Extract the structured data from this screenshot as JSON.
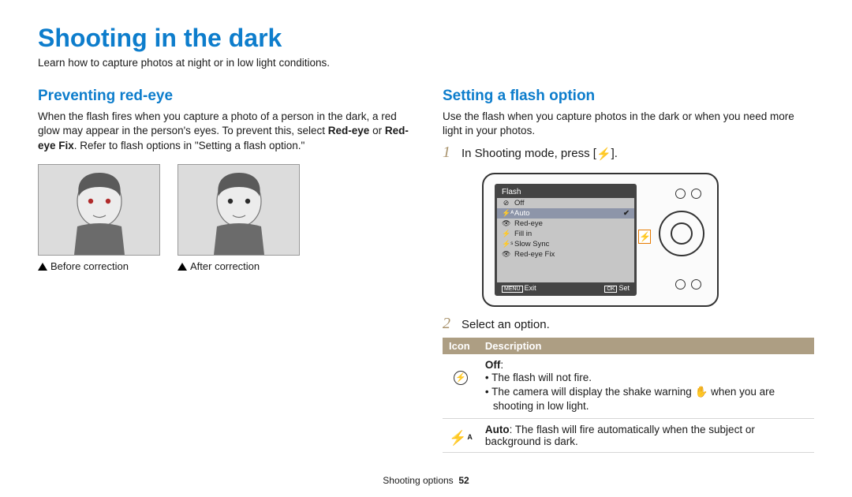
{
  "title": "Shooting in the dark",
  "subtitle": "Learn how to capture photos at night or in low light conditions.",
  "left": {
    "heading": "Preventing red-eye",
    "body_pre": "When the flash fires when you capture a photo of a person in the dark, a red glow may appear in the person's eyes. To prevent this, select ",
    "bold1": "Red-eye",
    "mid": " or ",
    "bold2": "Red-eye Fix",
    "body_post": ". Refer to flash options in \"Setting a flash option.\"",
    "caption_before": "Before correction",
    "caption_after": "After correction",
    "eye_color_before": "#b02a2a",
    "eye_color_after": "#2b2b2b"
  },
  "right": {
    "heading": "Setting a flash option",
    "body": "Use the flash when you capture photos in the dark or when you need more light in your photos.",
    "step1_pre": "In Shooting mode, press [",
    "step1_post": "].",
    "step2": "Select an option.",
    "flash_glyph": "⚡",
    "camera": {
      "title": "Flash",
      "items": [
        {
          "icon": "⊘",
          "label": "Off",
          "selected": false
        },
        {
          "icon": "⚡ᴬ",
          "label": "Auto",
          "selected": true
        },
        {
          "icon": "👁",
          "label": "Red-eye",
          "selected": false
        },
        {
          "icon": "⚡",
          "label": "Fill in",
          "selected": false
        },
        {
          "icon": "⚡ˢ",
          "label": "Slow Sync",
          "selected": false
        },
        {
          "icon": "👁",
          "label": "Red-eye Fix",
          "selected": false
        }
      ],
      "footer_left": "Exit",
      "footer_left_btn": "MENU",
      "footer_right": "Set",
      "footer_right_btn": "OK",
      "bolt_side": "⚡"
    },
    "table": {
      "col_icon": "Icon",
      "col_desc": "Description",
      "rows": [
        {
          "icon_kind": "circle-slash",
          "title": "Off",
          "title_post": ":",
          "lines": [
            "The flash will not fire.",
            "The camera will display the shake warning ✋ when you are shooting in low light."
          ]
        },
        {
          "icon_kind": "bolt-a",
          "title": "Auto",
          "body": ": The flash will fire automatically when the subject or background is dark."
        }
      ]
    }
  },
  "footer": {
    "section": "Shooting options",
    "page": "52"
  },
  "colors": {
    "heading": "#0d7dcc",
    "table_header_bg": "#ad9e83",
    "step_num": "#a9936d",
    "bolt_label_border": "#e67a00"
  }
}
